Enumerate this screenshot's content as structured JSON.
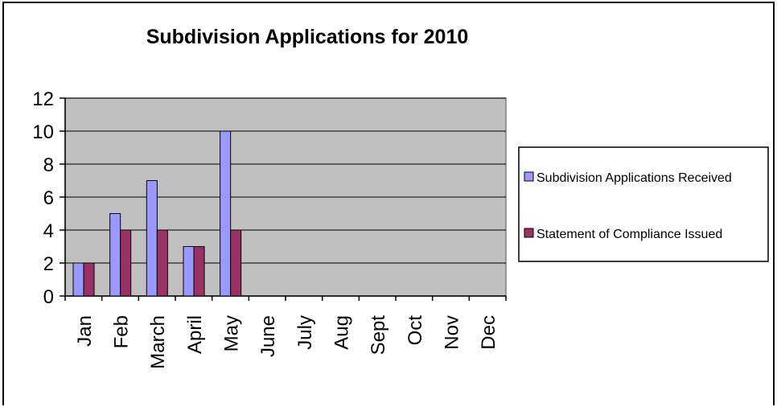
{
  "chart_data": {
    "type": "bar",
    "title": "Subdivision Applications for 2010",
    "xlabel": "",
    "ylabel": "",
    "categories": [
      "Jan",
      "Feb",
      "March",
      "April",
      "May",
      "June",
      "July",
      "Aug",
      "Sept",
      "Oct",
      "Nov",
      "Dec"
    ],
    "series": [
      {
        "name": "Subdivision Applications Received",
        "color": "#9999ff",
        "values": [
          2,
          5,
          7,
          3,
          10,
          null,
          null,
          null,
          null,
          null,
          null,
          null
        ]
      },
      {
        "name": "Statement of Compliance Issued",
        "color": "#993366",
        "values": [
          2,
          4,
          4,
          3,
          4,
          null,
          null,
          null,
          null,
          null,
          null,
          null
        ]
      }
    ],
    "ylim": [
      0,
      12
    ],
    "yticks": [
      0,
      2,
      4,
      6,
      8,
      10,
      12
    ],
    "grid": true,
    "plot_background": "#c0c0c0",
    "legend_position": "right"
  }
}
